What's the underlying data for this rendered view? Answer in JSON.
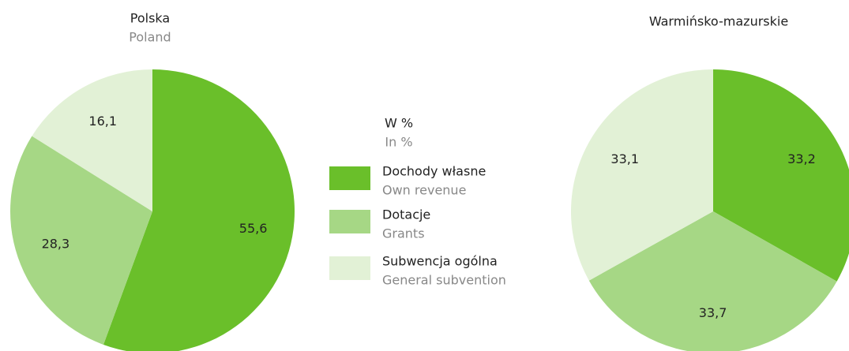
{
  "chart_data": [
    {
      "type": "pie",
      "title": "Polska",
      "subtitle": "Poland",
      "categories": [
        "Dochody własne",
        "Dotacje",
        "Subwencja ogólna"
      ],
      "categories_en": [
        "Own revenue",
        "Grants",
        "General subvention"
      ],
      "legend_title": "W %",
      "legend_subtitle": "In %",
      "colors": [
        "#6abf2a",
        "#a6d785",
        "#e2f1d6"
      ],
      "values": [
        55.6,
        28.3,
        16.1
      ],
      "value_labels": [
        "55,6",
        "28,3",
        "16,1"
      ]
    },
    {
      "type": "pie",
      "title": "Warmińsko-mazurskie",
      "colors": [
        "#6abf2a",
        "#a6d785",
        "#e2f1d6"
      ],
      "values": [
        33.2,
        33.7,
        33.1
      ],
      "value_labels": [
        "33,2",
        "33,7",
        "33,1"
      ]
    }
  ]
}
